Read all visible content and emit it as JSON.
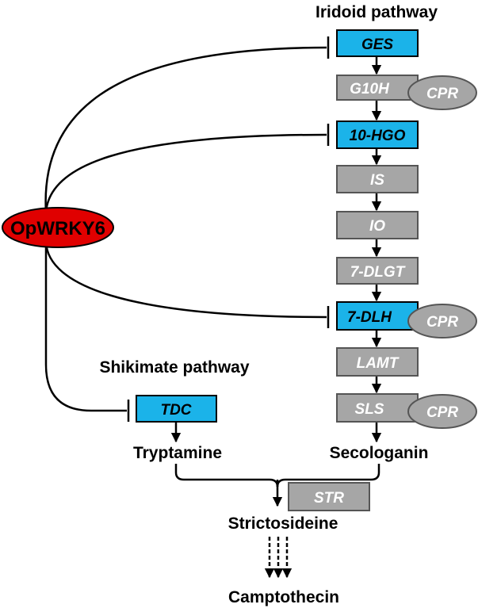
{
  "pathways": {
    "iridoid": "Iridoid pathway",
    "shikimate": "Shikimate pathway"
  },
  "regulator": "OpWRKY6",
  "iridoid_enzymes": {
    "ges": "GES",
    "g10h": "G10H",
    "hgo": "10-HGO",
    "is": "IS",
    "io": "IO",
    "dlgt": "7-DLGT",
    "dlh": "7-DLH",
    "lamt": "LAMT",
    "sls": "SLS"
  },
  "cofactor": {
    "cpr1": "CPR",
    "cpr2": "CPR",
    "cpr3": "CPR"
  },
  "shikimate_enzyme": {
    "tdc": "TDC"
  },
  "str_enzyme": "STR",
  "metabolites": {
    "tryptamine": "Tryptamine",
    "secologanin": "Secologanin",
    "strictosideine": "Strictosideine",
    "camptothecin": "Camptothecin"
  },
  "colors": {
    "regulated_enzyme": "#1bb3e9",
    "other_enzyme": "#a6a6a6",
    "regulator": "#e00000"
  }
}
